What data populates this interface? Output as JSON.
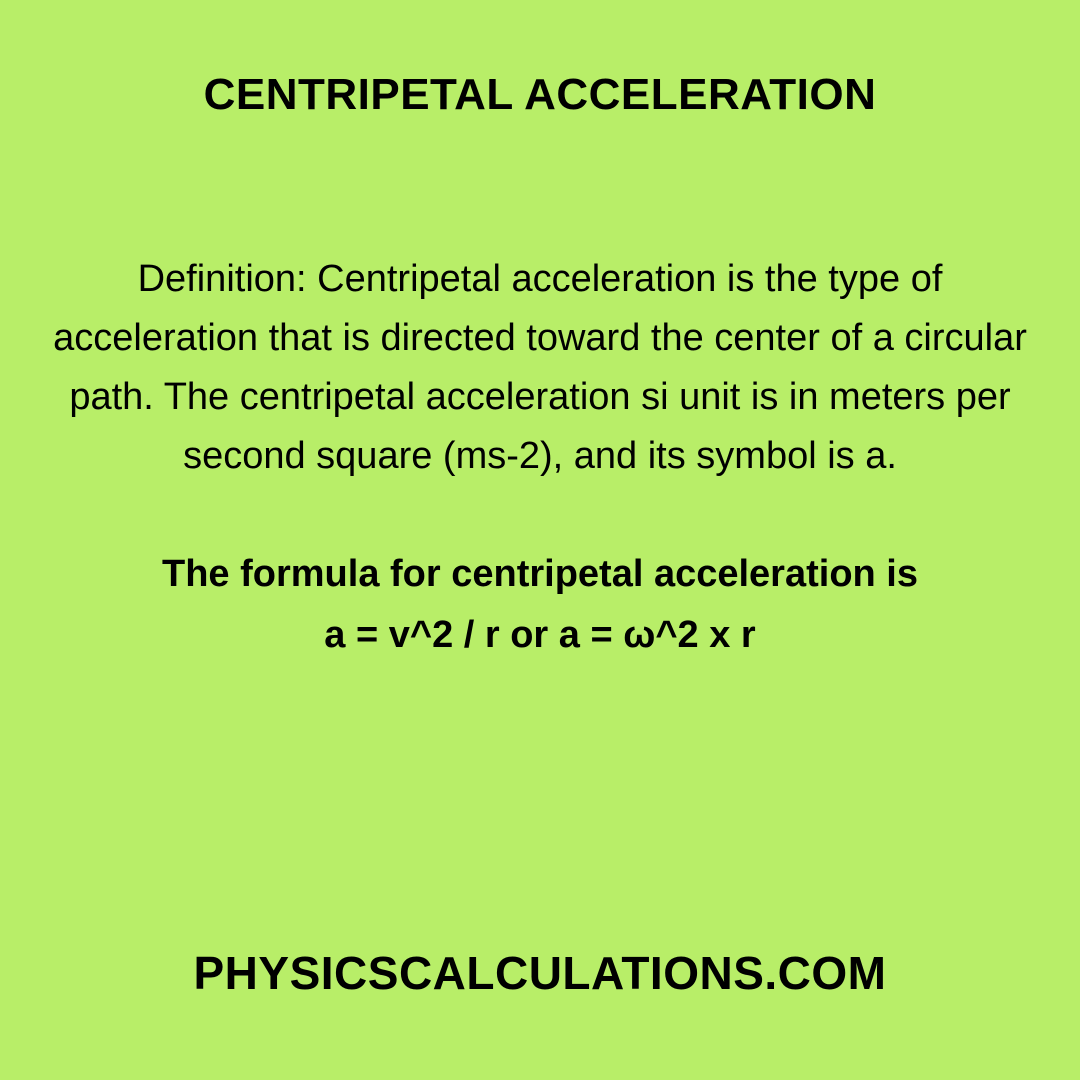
{
  "card": {
    "background_color": "#b8ee68",
    "text_color": "#000000",
    "title": {
      "text": "CENTRIPETAL ACCELERATION",
      "fontsize": 44
    },
    "definition": {
      "text": "Definition: Centripetal acceleration is the type of acceleration that is directed toward the center of a circular path. The centripetal acceleration si unit is in meters per second square (ms-2), and its symbol is a.",
      "fontsize": 38
    },
    "formula_intro": {
      "text": "The formula for centripetal acceleration is",
      "fontsize": 38
    },
    "formula": {
      "text": "a = v^2 / r or a = ω^2 x r",
      "fontsize": 38
    },
    "footer": {
      "text": "PHYSICSCALCULATIONS.COM",
      "fontsize": 46
    }
  }
}
